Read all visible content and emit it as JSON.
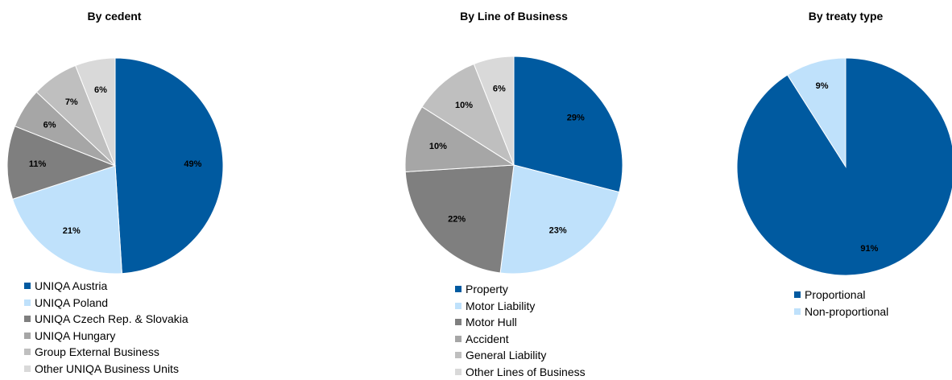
{
  "chart_data": [
    {
      "type": "pie",
      "title": "By cedent",
      "slices": [
        {
          "label": "UNIQA Austria",
          "value": 49,
          "display": "49%",
          "color": "#005aa0"
        },
        {
          "label": "UNIQA Poland",
          "value": 21,
          "display": "21%",
          "color": "#bfe1fb"
        },
        {
          "label": "UNIQA Czech Rep. & Slovakia",
          "value": 11,
          "display": "11%",
          "color": "#7f7f7f"
        },
        {
          "label": "UNIQA Hungary",
          "value": 6,
          "display": "6%",
          "color": "#a6a6a6"
        },
        {
          "label": "Group External Business",
          "value": 7,
          "display": "7%",
          "color": "#bfbfbf"
        },
        {
          "label": "Other UNIQA Business Units",
          "value": 6,
          "display": "6%",
          "color": "#d9d9d9"
        }
      ]
    },
    {
      "type": "pie",
      "title": "By Line  of Business",
      "slices": [
        {
          "label": "Property",
          "value": 29,
          "display": "29%",
          "color": "#005aa0"
        },
        {
          "label": "Motor Liability",
          "value": 23,
          "display": "23%",
          "color": "#bfe1fb"
        },
        {
          "label": "Motor Hull",
          "value": 22,
          "display": "22%",
          "color": "#7f7f7f"
        },
        {
          "label": "Accident",
          "value": 10,
          "display": "10%",
          "color": "#a6a6a6"
        },
        {
          "label": "General Liability",
          "value": 10,
          "display": "10%",
          "color": "#bfbfbf"
        },
        {
          "label": "Other Lines of Business",
          "value": 6,
          "display": "6%",
          "color": "#d9d9d9"
        }
      ]
    },
    {
      "type": "pie",
      "title": "By treaty type",
      "slices": [
        {
          "label": "Proportional",
          "value": 91,
          "display": "91%",
          "color": "#005aa0"
        },
        {
          "label": "Non-proportional",
          "value": 9,
          "display": "9%",
          "color": "#bfe1fb"
        }
      ]
    }
  ]
}
